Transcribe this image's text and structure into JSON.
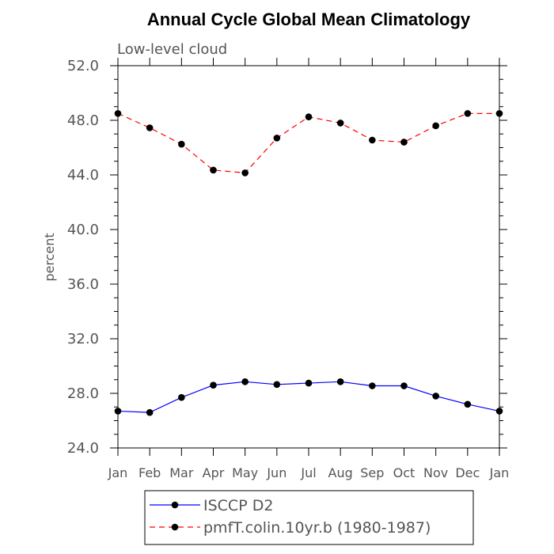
{
  "chart_data": {
    "type": "line",
    "title": "Annual Cycle Global Mean Climatology",
    "subtitle": "Low-level cloud",
    "xlabel": "",
    "ylabel": "percent",
    "categories": [
      "Jan",
      "Feb",
      "Mar",
      "Apr",
      "May",
      "Jun",
      "Jul",
      "Aug",
      "Sep",
      "Oct",
      "Nov",
      "Dec",
      "Jan"
    ],
    "ylim": [
      24.0,
      52.0
    ],
    "yticks": [
      "24.0",
      "28.0",
      "32.0",
      "36.0",
      "40.0",
      "44.0",
      "48.0",
      "52.0"
    ],
    "grid": false,
    "legend_position": "bottom",
    "series": [
      {
        "name": "ISCCP D2",
        "color": "#0000ff",
        "line_style": "solid",
        "marker": "filled-circle",
        "values": [
          26.7,
          26.6,
          27.7,
          28.6,
          28.85,
          28.65,
          28.75,
          28.85,
          28.55,
          28.55,
          27.8,
          27.2,
          26.7
        ]
      },
      {
        "name": "pmfT.colin.10yr.b (1980-1987)",
        "color": "#ff0000",
        "line_style": "dashed",
        "marker": "filled-circle",
        "values": [
          48.5,
          47.45,
          46.25,
          44.35,
          44.15,
          46.7,
          48.25,
          47.8,
          46.55,
          46.4,
          47.6,
          48.5,
          48.5
        ]
      }
    ]
  }
}
